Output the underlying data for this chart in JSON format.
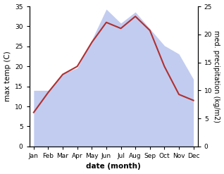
{
  "months": [
    "Jan",
    "Feb",
    "Mar",
    "Apr",
    "May",
    "Jun",
    "Jul",
    "Aug",
    "Sep",
    "Oct",
    "Nov",
    "Dec"
  ],
  "temperature": [
    8.5,
    13.5,
    18.0,
    20.0,
    26.0,
    31.0,
    29.5,
    32.5,
    29.0,
    20.0,
    13.0,
    11.5
  ],
  "precipitation": [
    10.0,
    10.0,
    13.0,
    14.0,
    19.0,
    24.5,
    22.0,
    24.0,
    21.0,
    18.0,
    16.5,
    12.0
  ],
  "temp_color": "#b03030",
  "precip_color": "#b8c4ee",
  "ylim_left": [
    0,
    35
  ],
  "ylim_right": [
    0,
    25
  ],
  "xlabel": "date (month)",
  "ylabel_left": "max temp (C)",
  "ylabel_right": "med. precipitation (kg/m2)",
  "bg_color": "#ffffff",
  "label_fontsize": 7.5,
  "tick_fontsize": 6.5,
  "yticks_left": [
    0,
    5,
    10,
    15,
    20,
    25,
    30,
    35
  ],
  "yticks_right": [
    0,
    5,
    10,
    15,
    20,
    25
  ]
}
